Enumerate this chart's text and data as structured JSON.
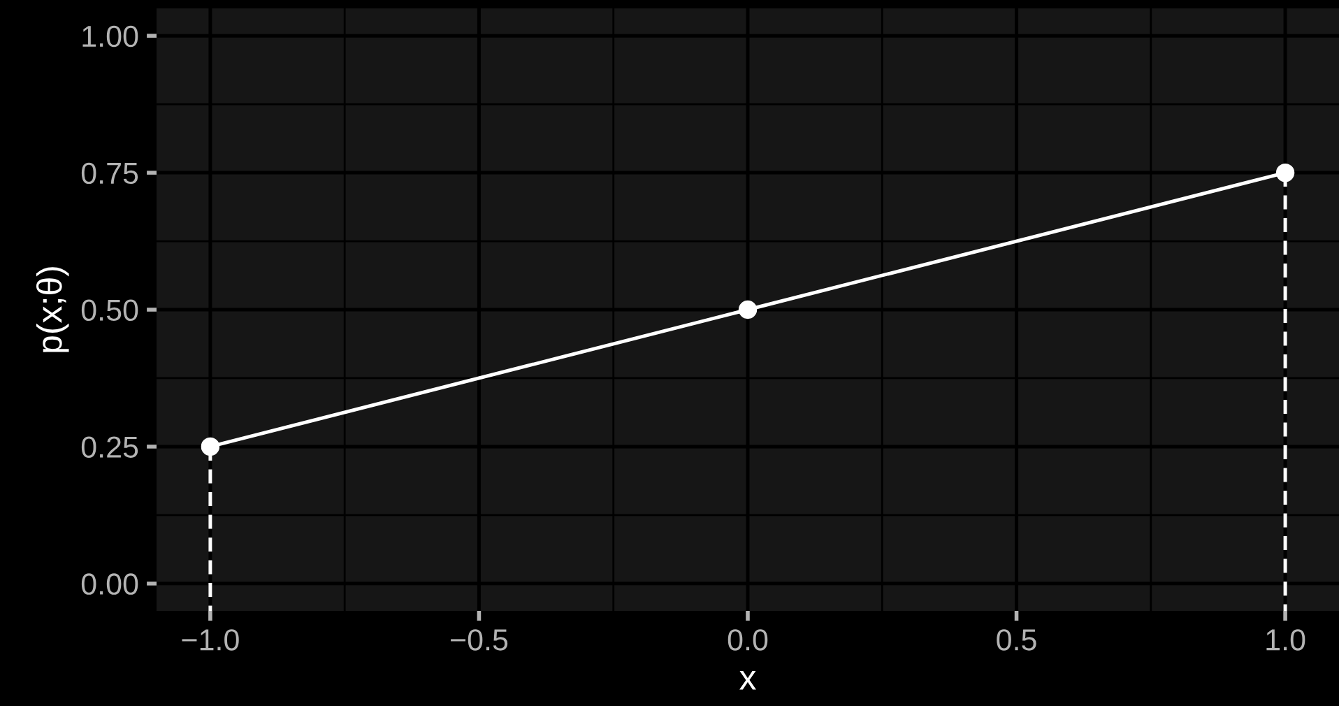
{
  "chart_data": {
    "type": "line",
    "xlabel": "x",
    "ylabel": "p(x;θ)",
    "xlim": [
      -1.1,
      1.1
    ],
    "ylim": [
      -0.05,
      1.05
    ],
    "xticks": [
      {
        "value": -1,
        "label": "−1.0"
      },
      {
        "value": -0.5,
        "label": "−0.5"
      },
      {
        "value": 0,
        "label": "0.0"
      },
      {
        "value": 0.5,
        "label": "0.5"
      },
      {
        "value": 1,
        "label": "1.0"
      }
    ],
    "yticks": [
      {
        "value": 0,
        "label": "0.00"
      },
      {
        "value": 0.25,
        "label": "0.25"
      },
      {
        "value": 0.5,
        "label": "0.50"
      },
      {
        "value": 0.75,
        "label": "0.75"
      },
      {
        "value": 1,
        "label": "1.00"
      }
    ],
    "grid": true,
    "series": [
      {
        "x": [
          -1,
          0,
          1
        ],
        "values": [
          0.25,
          0.5,
          0.75
        ],
        "color": "#ffffff",
        "marker": "circle",
        "line_style": "solid"
      },
      {
        "x": [
          -1,
          -1
        ],
        "values": [
          0.25,
          -0.05
        ],
        "color": "#ffffff",
        "marker": "none",
        "line_style": "dashed"
      },
      {
        "x": [
          1,
          1
        ],
        "values": [
          0.75,
          -0.05
        ],
        "color": "#ffffff",
        "marker": "none",
        "line_style": "dashed"
      }
    ]
  }
}
